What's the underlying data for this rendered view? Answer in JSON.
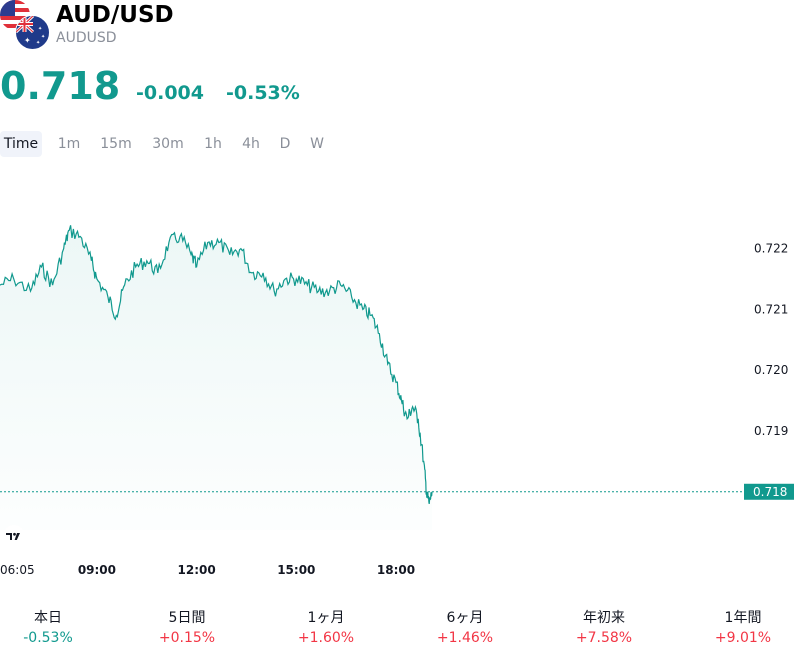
{
  "header": {
    "title": "AUD/USD",
    "subtitle": "AUDUSD",
    "flag_base_icon": "us-flag-icon",
    "flag_quote_icon": "au-flag-icon"
  },
  "quote": {
    "price": "0.718",
    "change": "-0.004",
    "change_pct": "-0.53%",
    "color": "#11998e"
  },
  "tabs": [
    "Time",
    "1m",
    "15m",
    "30m",
    "1h",
    "4h",
    "D",
    "W"
  ],
  "active_tab": "Time",
  "chart_data": {
    "type": "area",
    "title": "",
    "xlabel": "",
    "ylabel": "",
    "x_ticks": [
      "06:05",
      "09:00",
      "12:00",
      "15:00",
      "18:00"
    ],
    "y_ticks": [
      "0.718",
      "0.719",
      "0.720",
      "0.721",
      "0.722"
    ],
    "ylim": [
      0.7177,
      0.7228
    ],
    "grid": false,
    "current_value_label": "0.718",
    "line_color": "#11998e",
    "series": [
      {
        "x": [
          "06:05",
          "06:30",
          "07:00",
          "07:20",
          "07:40",
          "08:00",
          "08:10",
          "08:30",
          "08:50",
          "09:00",
          "09:20",
          "09:35",
          "09:50",
          "10:10",
          "10:30",
          "10:50",
          "11:10",
          "11:30",
          "11:50",
          "12:00",
          "12:20",
          "12:40",
          "13:00",
          "13:20",
          "13:40",
          "14:00",
          "14:20",
          "14:40",
          "15:00",
          "15:20",
          "15:40",
          "16:00",
          "16:20",
          "16:40",
          "17:00",
          "17:15",
          "17:30",
          "17:45",
          "18:00",
          "18:10",
          "18:20",
          "18:30",
          "18:40",
          "18:50",
          "18:55",
          "19:00",
          "19:05"
        ],
        "y": [
          0.7214,
          0.7215,
          0.7213,
          0.7217,
          0.7214,
          0.722,
          0.7223,
          0.7222,
          0.7218,
          0.7215,
          0.7212,
          0.7209,
          0.7214,
          0.7217,
          0.7218,
          0.7216,
          0.7221,
          0.7222,
          0.7219,
          0.7217,
          0.7221,
          0.7221,
          0.7219,
          0.722,
          0.7216,
          0.7216,
          0.7213,
          0.7215,
          0.7215,
          0.7214,
          0.7213,
          0.7213,
          0.7214,
          0.7212,
          0.721,
          0.7209,
          0.7206,
          0.7201,
          0.7198,
          0.7195,
          0.7192,
          0.7194,
          0.7192,
          0.7185,
          0.718,
          0.7178,
          0.718
        ]
      }
    ]
  },
  "stats": [
    {
      "label": "本日",
      "value": "-0.53%",
      "color": "#11998e"
    },
    {
      "label": "5日間",
      "value": "+0.15%",
      "color": "#f23645"
    },
    {
      "label": "1ヶ月",
      "value": "+1.60%",
      "color": "#f23645"
    },
    {
      "label": "6ヶ月",
      "value": "+1.46%",
      "color": "#f23645"
    },
    {
      "label": "年初来",
      "value": "+7.58%",
      "color": "#f23645"
    },
    {
      "label": "1年間",
      "value": "+9.01%",
      "color": "#f23645"
    }
  ]
}
